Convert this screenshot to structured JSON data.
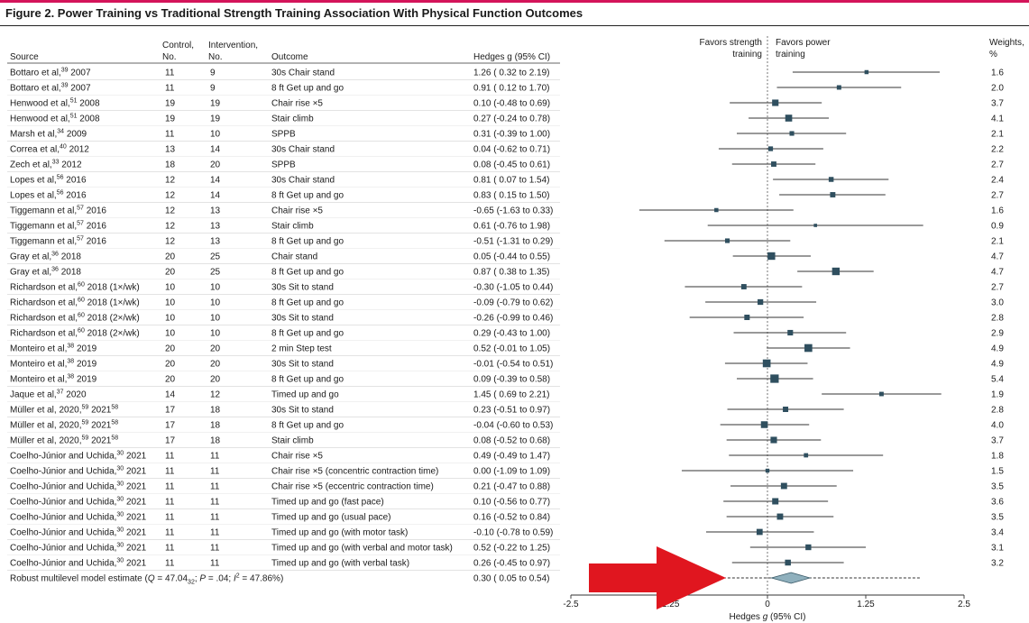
{
  "figure": {
    "title": "Figure 2. Power Training vs Traditional Strength Training Association With Physical Function Outcomes"
  },
  "colors": {
    "accent_bar": "#d4145a",
    "marker": "#2f4f5f",
    "diamond": "#8fb0bd",
    "arrow": "#e0161f"
  },
  "table_headers": {
    "source": "Source",
    "control": [
      "Control,",
      "No."
    ],
    "intervention": [
      "Intervention,",
      "No."
    ],
    "outcome": "Outcome",
    "hedges": "Hedges g (95% CI)",
    "weights": [
      "Weights,",
      "%"
    ]
  },
  "favors": {
    "left": [
      "Favors strength",
      "training"
    ],
    "right": [
      "Favors power",
      "training"
    ]
  },
  "chart_data": {
    "type": "forest",
    "xlabel": "Hedges g (95% CI)",
    "xlim": [
      -2.5,
      2.5
    ],
    "xticks": [
      "-2.5",
      "-1.25",
      "0",
      "1.25",
      "2.5"
    ],
    "rows": [
      {
        "author": "Bottaro et al,",
        "ref": "39",
        "year": " 2007",
        "control": "11",
        "intervention": "9",
        "outcome": "30s Chair stand",
        "ci_text": "1.26 ( 0.32 to 2.19)",
        "g": 1.26,
        "lo": 0.32,
        "hi": 2.19,
        "weight_text": "1.6",
        "weight": 1.6
      },
      {
        "author": "Bottaro et al,",
        "ref": "39",
        "year": " 2007",
        "control": "11",
        "intervention": "9",
        "outcome": "8 ft Get up and go",
        "ci_text": "0.91 ( 0.12 to 1.70)",
        "g": 0.91,
        "lo": 0.12,
        "hi": 1.7,
        "weight_text": "2.0",
        "weight": 2.0
      },
      {
        "author": "Henwood et al,",
        "ref": "51",
        "year": " 2008",
        "control": "19",
        "intervention": "19",
        "outcome": "Chair rise ×5",
        "ci_text": "0.10 (-0.48 to 0.69)",
        "g": 0.1,
        "lo": -0.48,
        "hi": 0.69,
        "weight_text": "3.7",
        "weight": 3.7
      },
      {
        "author": "Henwood et al,",
        "ref": "51",
        "year": " 2008",
        "control": "19",
        "intervention": "19",
        "outcome": "Stair climb",
        "ci_text": "0.27 (-0.24 to 0.78)",
        "g": 0.27,
        "lo": -0.24,
        "hi": 0.78,
        "weight_text": "4.1",
        "weight": 4.1
      },
      {
        "author": "Marsh et al,",
        "ref": "34",
        "year": " 2009",
        "control": "11",
        "intervention": "10",
        "outcome": "SPPB",
        "ci_text": "0.31 (-0.39 to 1.00)",
        "g": 0.31,
        "lo": -0.39,
        "hi": 1.0,
        "weight_text": "2.1",
        "weight": 2.1
      },
      {
        "author": "Correa et al,",
        "ref": "40",
        "year": " 2012",
        "control": "13",
        "intervention": "14",
        "outcome": "30s Chair stand",
        "ci_text": "0.04 (-0.62 to 0.71)",
        "g": 0.04,
        "lo": -0.62,
        "hi": 0.71,
        "weight_text": "2.2",
        "weight": 2.2
      },
      {
        "author": "Zech et al,",
        "ref": "33",
        "year": " 2012",
        "control": "18",
        "intervention": "20",
        "outcome": "SPPB",
        "ci_text": "0.08 (-0.45 to 0.61)",
        "g": 0.08,
        "lo": -0.45,
        "hi": 0.61,
        "weight_text": "2.7",
        "weight": 2.7
      },
      {
        "author": "Lopes et al,",
        "ref": "56",
        "year": " 2016",
        "control": "12",
        "intervention": "14",
        "outcome": "30s Chair stand",
        "ci_text": "0.81 ( 0.07 to 1.54)",
        "g": 0.81,
        "lo": 0.07,
        "hi": 1.54,
        "weight_text": "2.4",
        "weight": 2.4
      },
      {
        "author": "Lopes et al,",
        "ref": "56",
        "year": " 2016",
        "control": "12",
        "intervention": "14",
        "outcome": "8 ft Get up and go",
        "ci_text": "0.83 ( 0.15 to 1.50)",
        "g": 0.83,
        "lo": 0.15,
        "hi": 1.5,
        "weight_text": "2.7",
        "weight": 2.7
      },
      {
        "author": "Tiggemann et al,",
        "ref": "57",
        "year": " 2016",
        "control": "12",
        "intervention": "13",
        "outcome": "Chair rise ×5",
        "ci_text": "-0.65 (-1.63 to 0.33)",
        "g": -0.65,
        "lo": -1.63,
        "hi": 0.33,
        "weight_text": "1.6",
        "weight": 1.6
      },
      {
        "author": "Tiggemann et al,",
        "ref": "57",
        "year": " 2016",
        "control": "12",
        "intervention": "13",
        "outcome": "Stair climb",
        "ci_text": "0.61 (-0.76 to 1.98)",
        "g": 0.61,
        "lo": -0.76,
        "hi": 1.98,
        "weight_text": "0.9",
        "weight": 0.9
      },
      {
        "author": "Tiggemann et al,",
        "ref": "57",
        "year": " 2016",
        "control": "12",
        "intervention": "13",
        "outcome": "8 ft Get up and go",
        "ci_text": "-0.51 (-1.31 to 0.29)",
        "g": -0.51,
        "lo": -1.31,
        "hi": 0.29,
        "weight_text": "2.1",
        "weight": 2.1
      },
      {
        "author": "Gray et al,",
        "ref": "36",
        "year": " 2018",
        "control": "20",
        "intervention": "25",
        "outcome": "Chair stand",
        "ci_text": "0.05 (-0.44 to 0.55)",
        "g": 0.05,
        "lo": -0.44,
        "hi": 0.55,
        "weight_text": "4.7",
        "weight": 4.7
      },
      {
        "author": "Gray et al,",
        "ref": "36",
        "year": " 2018",
        "control": "20",
        "intervention": "25",
        "outcome": "8 ft Get up and go",
        "ci_text": "0.87 ( 0.38 to 1.35)",
        "g": 0.87,
        "lo": 0.38,
        "hi": 1.35,
        "weight_text": "4.7",
        "weight": 4.7
      },
      {
        "author": "Richardson et al,",
        "ref": "60",
        "year": " 2018 (1×/wk)",
        "control": "10",
        "intervention": "10",
        "outcome": "30s Sit to stand",
        "ci_text": "-0.30 (-1.05 to 0.44)",
        "g": -0.3,
        "lo": -1.05,
        "hi": 0.44,
        "weight_text": "2.7",
        "weight": 2.7
      },
      {
        "author": "Richardson et al,",
        "ref": "60",
        "year": " 2018 (1×/wk)",
        "control": "10",
        "intervention": "10",
        "outcome": "8 ft Get up and go",
        "ci_text": "-0.09 (-0.79 to 0.62)",
        "g": -0.09,
        "lo": -0.79,
        "hi": 0.62,
        "weight_text": "3.0",
        "weight": 3.0
      },
      {
        "author": "Richardson et al,",
        "ref": "60",
        "year": " 2018 (2×/wk)",
        "control": "10",
        "intervention": "10",
        "outcome": "30s Sit to stand",
        "ci_text": "-0.26 (-0.99 to 0.46)",
        "g": -0.26,
        "lo": -0.99,
        "hi": 0.46,
        "weight_text": "2.8",
        "weight": 2.8
      },
      {
        "author": "Richardson et al,",
        "ref": "60",
        "year": " 2018 (2×/wk)",
        "control": "10",
        "intervention": "10",
        "outcome": "8 ft Get up and go",
        "ci_text": "0.29 (-0.43 to 1.00)",
        "g": 0.29,
        "lo": -0.43,
        "hi": 1.0,
        "weight_text": "2.9",
        "weight": 2.9
      },
      {
        "author": "Monteiro et al,",
        "ref": "38",
        "year": " 2019",
        "control": "20",
        "intervention": "20",
        "outcome": "2 min Step test",
        "ci_text": "0.52 (-0.01 to 1.05)",
        "g": 0.52,
        "lo": -0.01,
        "hi": 1.05,
        "weight_text": "4.9",
        "weight": 4.9
      },
      {
        "author": "Monteiro et al,",
        "ref": "38",
        "year": " 2019",
        "control": "20",
        "intervention": "20",
        "outcome": "30s Sit to stand",
        "ci_text": "-0.01 (-0.54 to 0.51)",
        "g": -0.01,
        "lo": -0.54,
        "hi": 0.51,
        "weight_text": "4.9",
        "weight": 4.9
      },
      {
        "author": "Monteiro et al,",
        "ref": "38",
        "year": " 2019",
        "control": "20",
        "intervention": "20",
        "outcome": "8 ft Get up and go",
        "ci_text": "0.09 (-0.39 to 0.58)",
        "g": 0.09,
        "lo": -0.39,
        "hi": 0.58,
        "weight_text": "5.4",
        "weight": 5.4
      },
      {
        "author": "Jaque et al,",
        "ref": "37",
        "year": " 2020",
        "control": "14",
        "intervention": "12",
        "outcome": "Timed up and go",
        "ci_text": "1.45 ( 0.69 to 2.21)",
        "g": 1.45,
        "lo": 0.69,
        "hi": 2.21,
        "weight_text": "1.9",
        "weight": 1.9
      },
      {
        "author": "Müller et al, 2020,",
        "ref": "59",
        "year": " 2021",
        "ref2": "58",
        "control": "17",
        "intervention": "18",
        "outcome": "30s Sit to stand",
        "ci_text": "0.23 (-0.51 to 0.97)",
        "g": 0.23,
        "lo": -0.51,
        "hi": 0.97,
        "weight_text": "2.8",
        "weight": 2.8
      },
      {
        "author": "Müller et al, 2020,",
        "ref": "59",
        "year": " 2021",
        "ref2": "58",
        "control": "17",
        "intervention": "18",
        "outcome": "8 ft Get up and go",
        "ci_text": "-0.04 (-0.60 to 0.53)",
        "g": -0.04,
        "lo": -0.6,
        "hi": 0.53,
        "weight_text": "4.0",
        "weight": 4.0
      },
      {
        "author": "Müller et al, 2020,",
        "ref": "59",
        "year": " 2021",
        "ref2": "58",
        "control": "17",
        "intervention": "18",
        "outcome": "Stair climb",
        "ci_text": "0.08 (-0.52 to 0.68)",
        "g": 0.08,
        "lo": -0.52,
        "hi": 0.68,
        "weight_text": "3.7",
        "weight": 3.7
      },
      {
        "author": "Coelho-Júnior and Uchida,",
        "ref": "30",
        "year": " 2021",
        "control": "11",
        "intervention": "11",
        "outcome": "Chair rise ×5",
        "ci_text": "0.49 (-0.49 to 1.47)",
        "g": 0.49,
        "lo": -0.49,
        "hi": 1.47,
        "weight_text": "1.8",
        "weight": 1.8
      },
      {
        "author": "Coelho-Júnior and Uchida,",
        "ref": "30",
        "year": " 2021",
        "control": "11",
        "intervention": "11",
        "outcome": "Chair rise ×5 (concentric contraction time)",
        "ci_text": "0.00 (-1.09 to 1.09)",
        "g": 0.0,
        "lo": -1.09,
        "hi": 1.09,
        "weight_text": "1.5",
        "weight": 1.5
      },
      {
        "author": "Coelho-Júnior and Uchida,",
        "ref": "30",
        "year": " 2021",
        "control": "11",
        "intervention": "11",
        "outcome": "Chair rise ×5 (eccentric contraction time)",
        "ci_text": "0.21 (-0.47 to 0.88)",
        "g": 0.21,
        "lo": -0.47,
        "hi": 0.88,
        "weight_text": "3.5",
        "weight": 3.5
      },
      {
        "author": "Coelho-Júnior and Uchida,",
        "ref": "30",
        "year": " 2021",
        "control": "11",
        "intervention": "11",
        "outcome": "Timed up and go (fast pace)",
        "ci_text": "0.10 (-0.56 to 0.77)",
        "g": 0.1,
        "lo": -0.56,
        "hi": 0.77,
        "weight_text": "3.6",
        "weight": 3.6
      },
      {
        "author": "Coelho-Júnior and Uchida,",
        "ref": "30",
        "year": " 2021",
        "control": "11",
        "intervention": "11",
        "outcome": "Timed up and go (usual pace)",
        "ci_text": "0.16 (-0.52 to 0.84)",
        "g": 0.16,
        "lo": -0.52,
        "hi": 0.84,
        "weight_text": "3.5",
        "weight": 3.5
      },
      {
        "author": "Coelho-Júnior and Uchida,",
        "ref": "30",
        "year": " 2021",
        "control": "11",
        "intervention": "11",
        "outcome": "Timed up and go (with motor task)",
        "ci_text": "-0.10 (-0.78 to 0.59)",
        "g": -0.1,
        "lo": -0.78,
        "hi": 0.59,
        "weight_text": "3.4",
        "weight": 3.4
      },
      {
        "author": "Coelho-Júnior and Uchida,",
        "ref": "30",
        "year": " 2021",
        "control": "11",
        "intervention": "11",
        "outcome": "Timed up and go (with verbal and motor task)",
        "ci_text": "0.52 (-0.22 to 1.25)",
        "g": 0.52,
        "lo": -0.22,
        "hi": 1.25,
        "weight_text": "3.1",
        "weight": 3.1
      },
      {
        "author": "Coelho-Júnior and Uchida,",
        "ref": "30",
        "year": " 2021",
        "control": "11",
        "intervention": "11",
        "outcome": "Timed up and go (with verbal task)",
        "ci_text": "0.26 (-0.45 to 0.97)",
        "g": 0.26,
        "lo": -0.45,
        "hi": 0.97,
        "weight_text": "3.2",
        "weight": 3.2
      }
    ],
    "summary": {
      "label_prefix": "Robust multilevel model estimate (",
      "q_label": "Q",
      "q_value": " = 47.04",
      "q_df": "32",
      "p_label": "P",
      "p_value": " = .04; ",
      "i_label": "I",
      "i_sup": "2",
      "i_value": " = 47.86%)",
      "ci_text": "0.30 ( 0.05 to 0.54)",
      "g": 0.3,
      "lo": 0.05,
      "hi": 0.54,
      "pi_lo": -0.85,
      "pi_hi": 1.95
    }
  }
}
